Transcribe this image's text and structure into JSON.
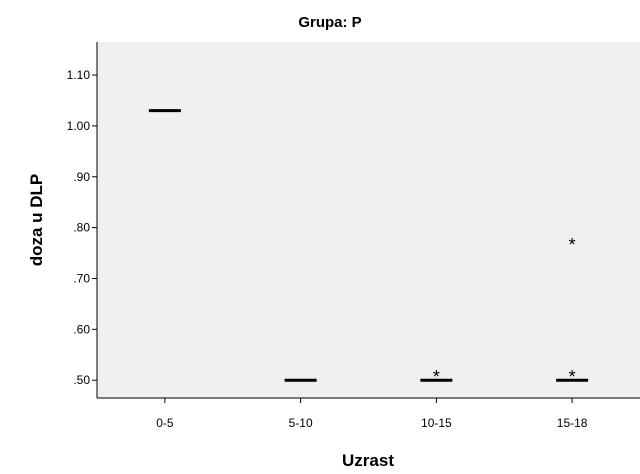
{
  "chart_data": {
    "type": "boxplot",
    "title": "Grupa: P",
    "xlabel": "Uzrast",
    "ylabel": "doza u DLP",
    "categories": [
      "0-5",
      "5-10",
      "10-15",
      "15-18"
    ],
    "yticks": [
      ".50",
      ".60",
      ".70",
      ".80",
      ".90",
      "1.00",
      "1.10"
    ],
    "ylim": [
      0.465,
      1.165
    ],
    "medians": [
      1.03,
      0.5,
      0.5,
      0.5
    ],
    "outliers": [
      {
        "category": "10-15",
        "value": 0.51,
        "marker": "*"
      },
      {
        "category": "15-18",
        "value": 0.77,
        "marker": "*"
      },
      {
        "category": "15-18",
        "value": 0.51,
        "marker": "*"
      }
    ],
    "grid": false,
    "colors": {
      "plot_background": "#f0f0f0",
      "marks": "#000000"
    }
  }
}
